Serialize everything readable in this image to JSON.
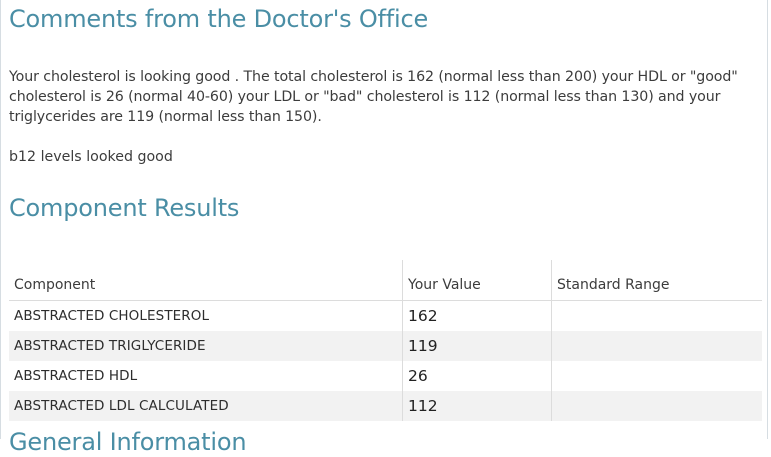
{
  "comments": {
    "title": "Comments from the Doctor's Office",
    "paragraph1": "Your cholesterol is looking good .  The total cholesterol is 162 (normal less than 200) your HDL or \"good\" cholesterol is 26 (normal 40-60) your LDL or \"bad\" cholesterol is 112 (normal less than 130) and your triglycerides are 119 (normal less than 150).",
    "paragraph2": "b12 levels looked good"
  },
  "results": {
    "title": "Component Results",
    "headers": {
      "component": "Component",
      "value": "Your Value",
      "range": "Standard Range"
    },
    "rows": [
      {
        "component": "ABSTRACTED CHOLESTEROL",
        "value": "162",
        "range": ""
      },
      {
        "component": "ABSTRACTED TRIGLYCERIDE",
        "value": "119",
        "range": ""
      },
      {
        "component": "ABSTRACTED HDL",
        "value": "26",
        "range": ""
      },
      {
        "component": "ABSTRACTED LDL CALCULATED",
        "value": "112",
        "range": ""
      }
    ]
  },
  "general": {
    "title": "General Information"
  },
  "colors": {
    "heading": "#4a8ea5",
    "row_alt": "#f2f2f2",
    "border": "#dcdcdc"
  }
}
